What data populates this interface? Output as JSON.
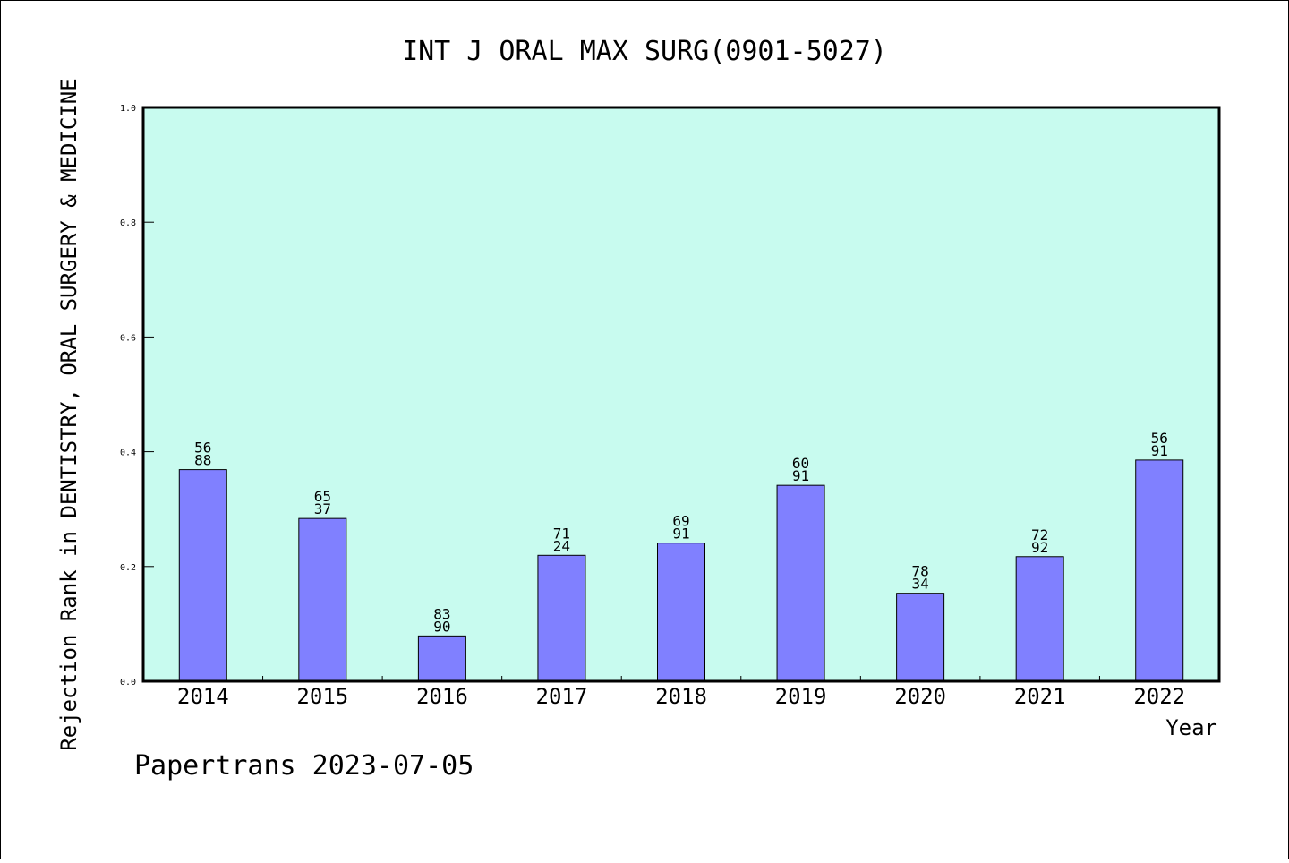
{
  "chart_data": {
    "type": "bar",
    "title": "INT J ORAL MAX SURG(0901-5027)",
    "xlabel": "Year",
    "ylabel": "Rejection Rank in DENTISTRY, ORAL SURGERY & MEDICINE",
    "ylim": [
      0,
      1.0
    ],
    "yticks": [
      "0.0",
      "0.2",
      "0.4",
      "0.6",
      "0.8",
      "1.0"
    ],
    "categories": [
      "2014",
      "2015",
      "2016",
      "2017",
      "2018",
      "2019",
      "2020",
      "2021",
      "2022"
    ],
    "values": [
      0.3688,
      0.2837,
      0.079,
      0.2195,
      0.2408,
      0.3414,
      0.1534,
      0.2172,
      0.3855
    ],
    "bar_labels": [
      [
        "56",
        "88"
      ],
      [
        "65",
        "37"
      ],
      [
        "83",
        "90"
      ],
      [
        "71",
        "24"
      ],
      [
        "69",
        "91"
      ],
      [
        "60",
        "91"
      ],
      [
        "78",
        "34"
      ],
      [
        "72",
        "92"
      ],
      [
        "56",
        "91"
      ]
    ],
    "grid": false,
    "colors": {
      "plot_background": "#c8fbef",
      "bar": "#8080ff"
    }
  },
  "footer": "Papertrans 2023-07-05"
}
